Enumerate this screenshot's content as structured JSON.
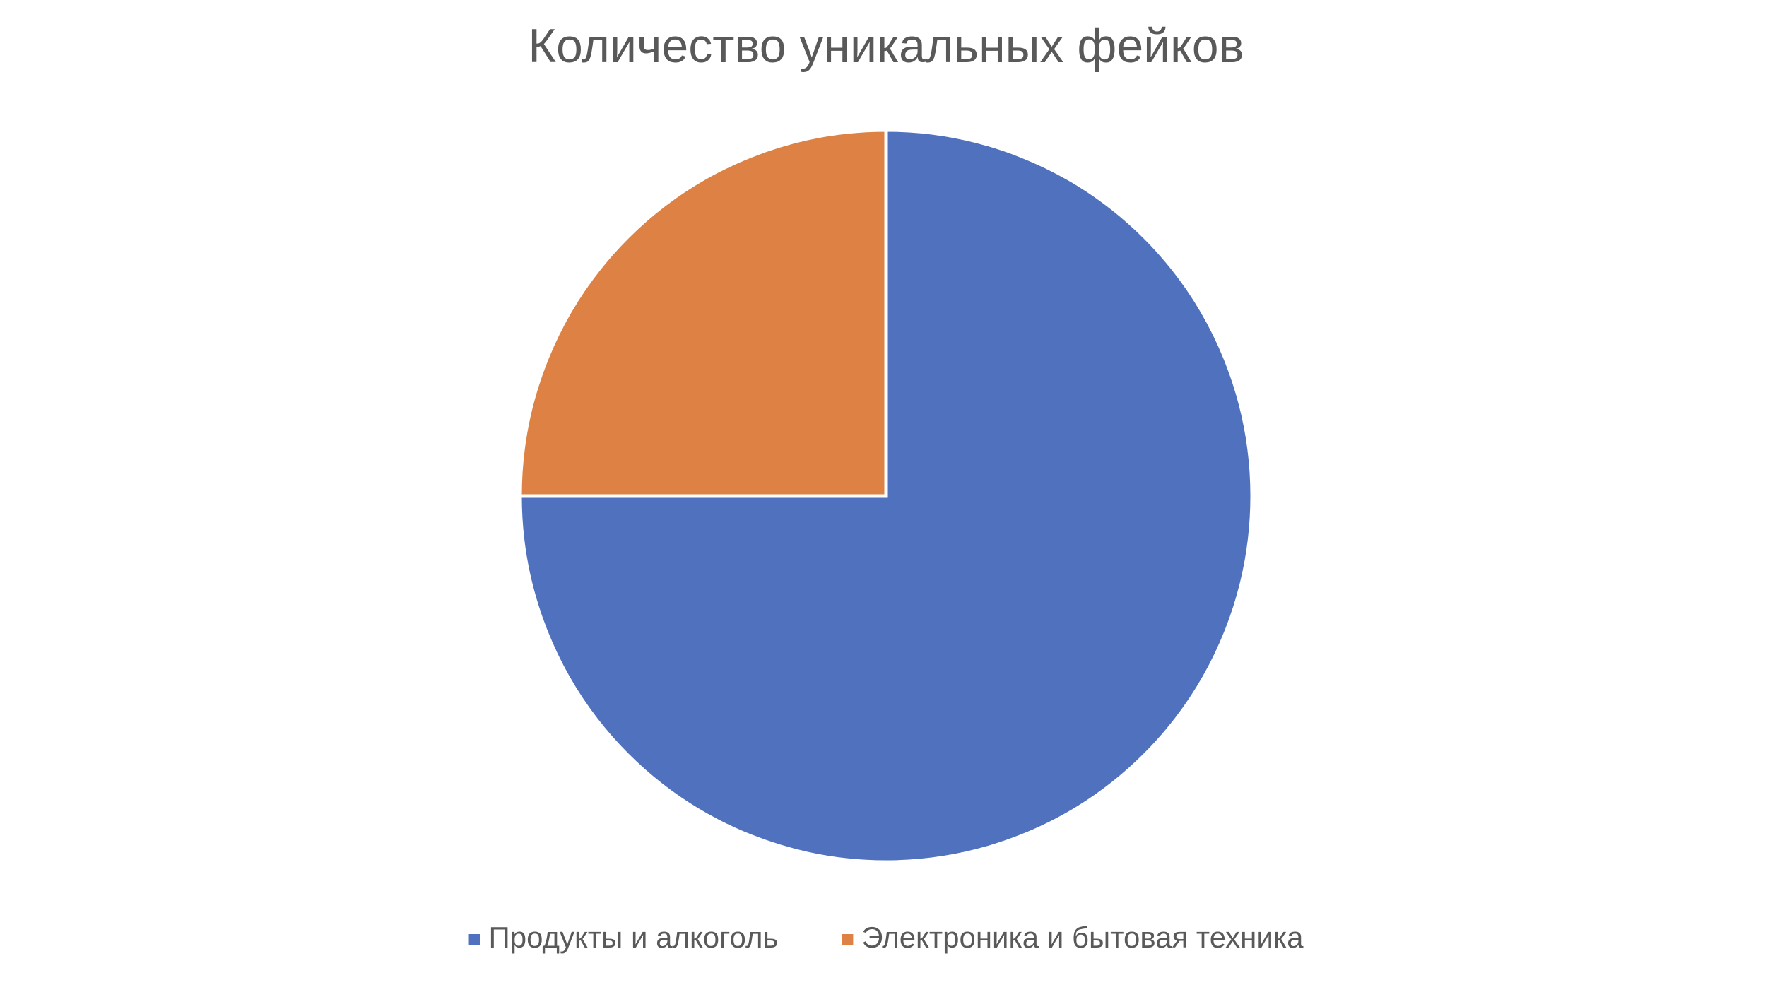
{
  "chart_data": {
    "type": "pie",
    "title": "Количество уникальных фейков",
    "categories": [
      "Продукты и алкоголь",
      "Электроника и бытовая техника"
    ],
    "values": [
      75,
      25
    ],
    "colors": [
      "#4f71be",
      "#dd8244"
    ],
    "legend": "bottom"
  }
}
